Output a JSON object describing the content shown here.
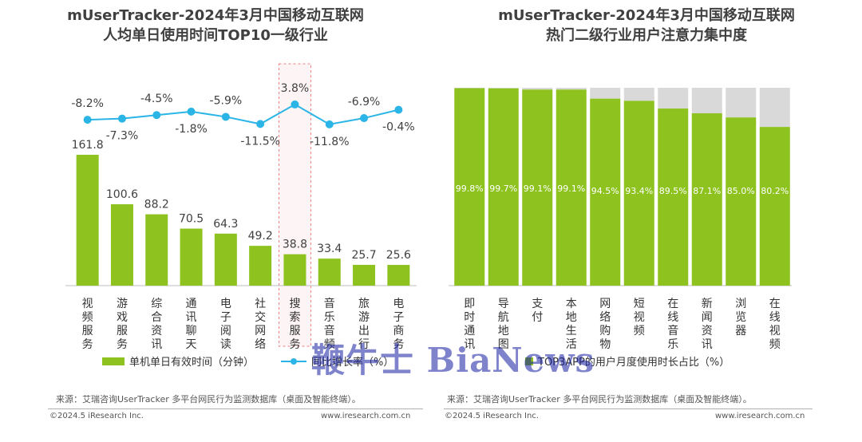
{
  "left_panel": {
    "title_line1": "mUserTracker-2024年3月中国移动互联网",
    "title_line2": "人均单日使用时间TOP10一级行业",
    "source": "来源：艾瑞咨询UserTracker 多平台网民行为监测数据库（桌面及智能终端）。",
    "copyright": "©2024.5 iResearch Inc.",
    "website": "www.iresearch.com.cn"
  },
  "right_panel": {
    "title_line1": "mUserTracker-2024年3月中国移动互联网",
    "title_line2": "热门二级行业用户注意力集中度",
    "source": "来源：艾瑞咨询UserTracker 多平台网民行为监测数据库（桌面及智能终端）。",
    "copyright": "©2024.5 iResearch Inc.",
    "website": "www.iresearch.com.cn"
  },
  "watermark": "鞭牛士 BiaNews",
  "colors": {
    "bar": "#8dc21f",
    "line": "#2bb5e6",
    "gray": "#d9d9d9",
    "highlight": "#e88080"
  },
  "chart_data": [
    {
      "type": "bar",
      "categories": [
        "视频服务",
        "游戏服务",
        "综合资讯",
        "通讯聊天",
        "电子阅读",
        "社交网络",
        "搜索服务",
        "音乐音频",
        "旅游出行",
        "电子商务"
      ],
      "highlight_category": "搜索服务",
      "series": [
        {
          "name": "单机单日有效时间（分钟）",
          "type": "bar",
          "values": [
            161.8,
            100.6,
            88.2,
            70.5,
            64.3,
            49.2,
            38.8,
            33.4,
            25.7,
            25.6
          ],
          "labels": [
            "161.8",
            "100.6",
            "88.2",
            "70.5",
            "64.3",
            "49.2",
            "38.8",
            "33.4",
            "25.7",
            "25.6"
          ]
        },
        {
          "name": "同比增长率（%）",
          "type": "line",
          "values": [
            -8.2,
            -7.3,
            -4.5,
            -1.8,
            -5.9,
            -11.5,
            3.8,
            -11.8,
            -6.9,
            -0.4
          ],
          "labels": [
            "-8.2%",
            "-7.3%",
            "-4.5%",
            "-1.8%",
            "-5.9%",
            "-11.5%",
            "3.8%",
            "-11.8%",
            "-6.9%",
            "-0.4%"
          ]
        }
      ]
    },
    {
      "type": "bar",
      "stacked": true,
      "categories": [
        "即时通讯",
        "导航地图",
        "支付",
        "本地生活",
        "网络购物",
        "短视频",
        "在线音乐",
        "新闻资讯",
        "浏览器",
        "在线视频"
      ],
      "series": [
        {
          "name": "TOP3APP的用户月度使用时长占比（%）",
          "values": [
            99.8,
            99.7,
            99.1,
            99.1,
            94.5,
            93.4,
            89.5,
            87.1,
            85.0,
            80.2
          ],
          "labels": [
            "99.8%",
            "99.7%",
            "99.1%",
            "99.1%",
            "94.5%",
            "93.4%",
            "89.5%",
            "87.1%",
            "85.0%",
            "80.2%"
          ]
        }
      ],
      "ylim": [
        0,
        100
      ]
    }
  ]
}
